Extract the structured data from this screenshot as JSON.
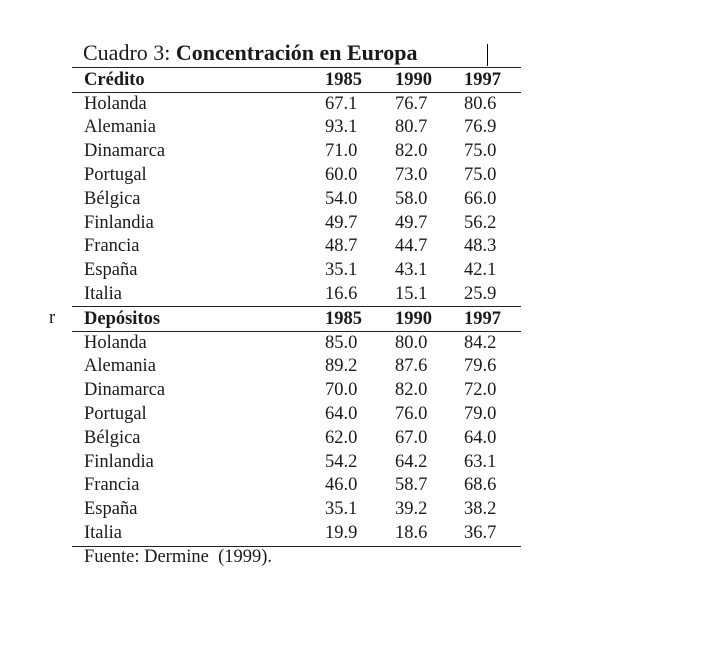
{
  "title": {
    "label": "Cuadro 3:",
    "text": "Concentración en Europa"
  },
  "stray_char": "r",
  "sections": [
    {
      "header": [
        "Crédito",
        "1985",
        "1990",
        "1997"
      ],
      "rows": [
        [
          "Holanda",
          "67.1",
          "76.7",
          "80.6"
        ],
        [
          "Alemania",
          "93.1",
          "80.7",
          "76.9"
        ],
        [
          "Dinamarca",
          "71.0",
          "82.0",
          "75.0"
        ],
        [
          "Portugal",
          "60.0",
          "73.0",
          "75.0"
        ],
        [
          "Bélgica",
          "54.0",
          "58.0",
          "66.0"
        ],
        [
          "Finlandia",
          "49.7",
          "49.7",
          "56.2"
        ],
        [
          "Francia",
          "48.7",
          "44.7",
          "48.3"
        ],
        [
          "España",
          "35.1",
          "43.1",
          "42.1"
        ],
        [
          "Italia",
          "16.6",
          "15.1",
          "25.9"
        ]
      ]
    },
    {
      "header": [
        "Depósitos",
        "1985",
        "1990",
        "1997"
      ],
      "rows": [
        [
          "Holanda",
          "85.0",
          "80.0",
          "84.2"
        ],
        [
          "Alemania",
          "89.2",
          "87.6",
          "79.6"
        ],
        [
          "Dinamarca",
          "70.0",
          "82.0",
          "72.0"
        ],
        [
          "Portugal",
          "64.0",
          "76.0",
          "79.0"
        ],
        [
          "Bélgica",
          "62.0",
          "67.0",
          "64.0"
        ],
        [
          "Finlandia",
          "54.2",
          "64.2",
          "63.1"
        ],
        [
          "Francia",
          "46.0",
          "58.7",
          "68.6"
        ],
        [
          "España",
          "35.1",
          "39.2",
          "38.2"
        ],
        [
          "Italia",
          "19.9",
          "18.6",
          "36.7"
        ]
      ]
    }
  ],
  "source": "Fuente: Dermine  (1999)."
}
